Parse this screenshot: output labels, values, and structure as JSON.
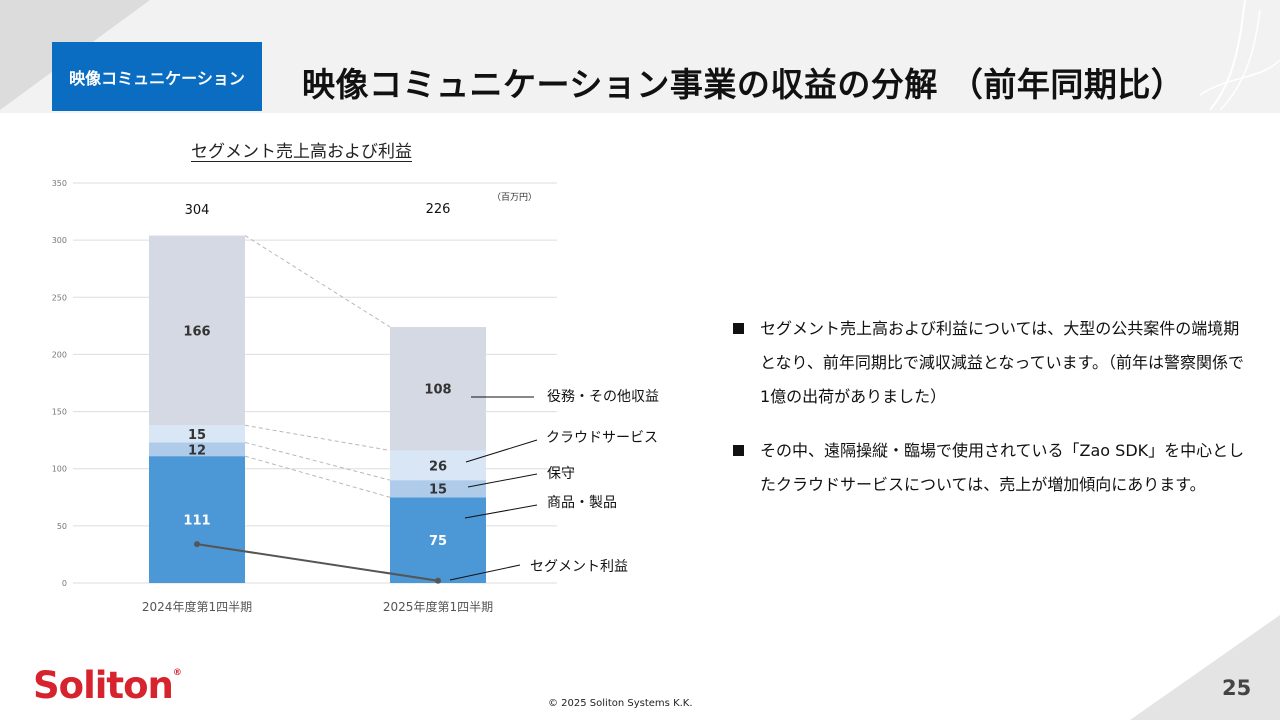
{
  "header": {
    "tag": "映像コミュニケーション",
    "title": "映像コミュニケーション事業の収益の分解 （前年同期比）"
  },
  "chart_data": {
    "type": "bar",
    "title": "セグメント売上高および利益",
    "unit": "（百万円）",
    "categories": [
      "2024年度第1四半期",
      "2025年度第1四半期"
    ],
    "ylim": [
      0,
      350
    ],
    "yticks": [
      0,
      50,
      100,
      150,
      200,
      250,
      300,
      350
    ],
    "stacked": true,
    "grid": true,
    "totals": [
      304,
      226
    ],
    "series": [
      {
        "name": "商品・製品",
        "values": [
          111,
          75
        ],
        "color": "#4c97d6"
      },
      {
        "name": "保守",
        "values": [
          12,
          15
        ],
        "color": "#aecbea"
      },
      {
        "name": "クラウドサービス",
        "values": [
          15,
          26
        ],
        "color": "#d8e6f5"
      },
      {
        "name": "役務・その他収益",
        "values": [
          166,
          108
        ],
        "color": "#d4d9e3"
      }
    ],
    "line": {
      "name": "セグメント利益",
      "values": [
        34,
        2
      ],
      "color": "#555555"
    }
  },
  "bullets": [
    "セグメント売上高および利益については、大型の公共案件の端境期となり、前年同期比で減収減益となっています。（前年は警察関係で1億の出荷がありました）",
    "その中、遠隔操縦・臨場で使用されている「Zao SDK」を中心としたクラウドサービスについては、売上が増加傾向にあります。"
  ],
  "footer": {
    "logo": "Soliton",
    "registered": "®",
    "copyright": "© 2025 Soliton Systems K.K.",
    "page": "25"
  }
}
